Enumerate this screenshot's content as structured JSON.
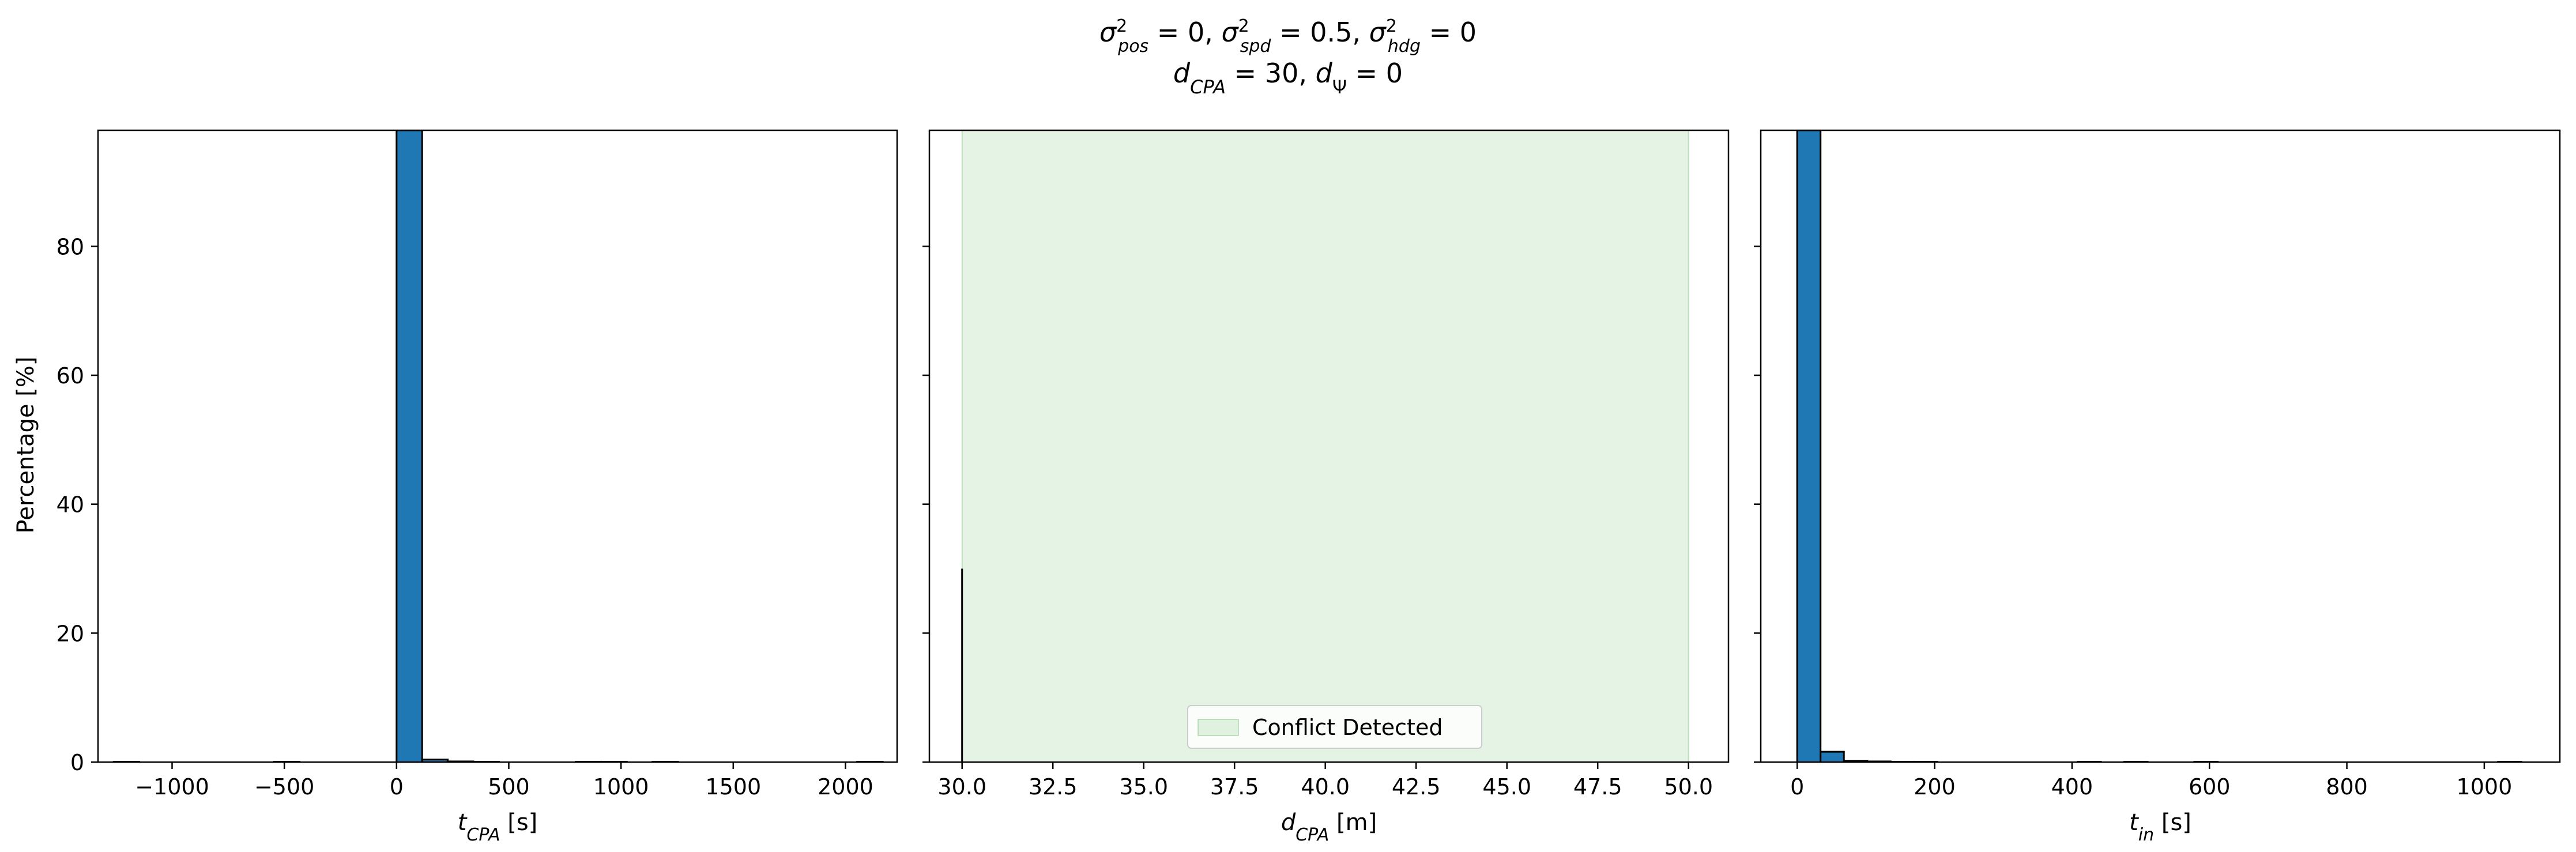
{
  "figure": {
    "title_line1": "σ²pos = 0, σ²spd = 0.5, σ²hdg = 0",
    "title_line2": "dCPA = 30, dΨ = 0",
    "ylabel": "Percentage [%]"
  },
  "colors": {
    "bar_fill": "#1f77b4",
    "bar_edge": "#000000",
    "conflict_fill": "#2ca02c"
  },
  "chart_data": [
    {
      "type": "bar",
      "xlabel": "tCPA [s]",
      "ylabel": "Percentage [%]",
      "xlim": [
        -1330,
        2230
      ],
      "ylim": [
        0,
        98
      ],
      "xticks": [
        -1000,
        -500,
        0,
        500,
        1000,
        1500,
        2000
      ],
      "xtick_labels": [
        "−1000",
        "−500",
        "0",
        "500",
        "1000",
        "1500",
        "2000"
      ],
      "yticks": [
        0,
        20,
        40,
        60,
        80
      ],
      "ytick_labels": [
        "0",
        "20",
        "40",
        "60",
        "80"
      ],
      "bins": [
        {
          "x0": -1260,
          "x1": -1146,
          "value": 0.05
        },
        {
          "x0": -546,
          "x1": -432,
          "value": 0.05
        },
        {
          "x0": 0,
          "x1": 114,
          "value": 98
        },
        {
          "x0": 114,
          "x1": 228,
          "value": 0.4
        },
        {
          "x0": 228,
          "x1": 342,
          "value": 0.1
        },
        {
          "x0": 342,
          "x1": 456,
          "value": 0.05
        },
        {
          "x0": 798,
          "x1": 912,
          "value": 0.05
        },
        {
          "x0": 912,
          "x1": 1026,
          "value": 0.05
        },
        {
          "x0": 1140,
          "x1": 1254,
          "value": 0.05
        },
        {
          "x0": 2052,
          "x1": 2166,
          "value": 0.05
        }
      ]
    },
    {
      "type": "bar",
      "xlabel": "dCPA [m]",
      "xlim": [
        29.1,
        51.1
      ],
      "ylim": [
        0,
        98
      ],
      "xticks": [
        30,
        32.5,
        35,
        37.5,
        40,
        42.5,
        45,
        47.5,
        50
      ],
      "xtick_labels": [
        "30.0",
        "32.5",
        "35.0",
        "37.5",
        "40.0",
        "42.5",
        "45.0",
        "47.5",
        "50.0"
      ],
      "yticks": [
        0,
        20,
        40,
        60,
        80
      ],
      "bins": [
        {
          "x0": 30,
          "x1": 30,
          "value": 30
        }
      ],
      "shaded_region": {
        "x0": 30,
        "x1": 50,
        "label": "Conflict Detected"
      },
      "legend": {
        "placement": "bottom-center",
        "entries": [
          "Conflict Detected"
        ]
      }
    },
    {
      "type": "bar",
      "xlabel": "tin [s]",
      "xlim": [
        -53,
        1110
      ],
      "ylim": [
        0,
        98
      ],
      "xticks": [
        0,
        200,
        400,
        600,
        800,
        1000
      ],
      "xtick_labels": [
        "0",
        "200",
        "400",
        "600",
        "800",
        "1000"
      ],
      "yticks": [
        0,
        20,
        40,
        60,
        80
      ],
      "bins": [
        {
          "x0": 0,
          "x1": 34,
          "value": 98
        },
        {
          "x0": 34,
          "x1": 68,
          "value": 1.6
        },
        {
          "x0": 68,
          "x1": 102,
          "value": 0.2
        },
        {
          "x0": 102,
          "x1": 136,
          "value": 0.1
        },
        {
          "x0": 136,
          "x1": 170,
          "value": 0.05
        },
        {
          "x0": 170,
          "x1": 204,
          "value": 0.05
        },
        {
          "x0": 408,
          "x1": 442,
          "value": 0.05
        },
        {
          "x0": 476,
          "x1": 510,
          "value": 0.05
        },
        {
          "x0": 578,
          "x1": 612,
          "value": 0.05
        },
        {
          "x0": 1020,
          "x1": 1054,
          "value": 0.05
        }
      ]
    }
  ]
}
